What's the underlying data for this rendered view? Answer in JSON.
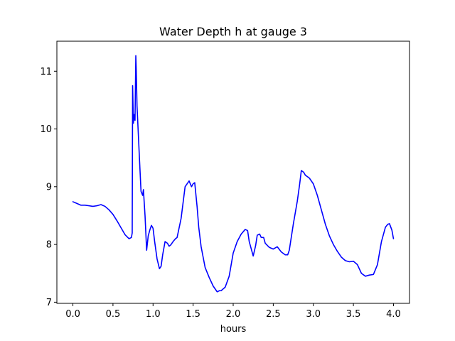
{
  "chart_data": {
    "type": "line",
    "title": "Water Depth h at gauge 3",
    "xlabel": "hours",
    "ylabel": "",
    "xlim": [
      -0.2,
      4.2
    ],
    "ylim": [
      6.98,
      11.52
    ],
    "xticks": [
      0.0,
      0.5,
      1.0,
      1.5,
      2.0,
      2.5,
      3.0,
      3.5,
      4.0
    ],
    "xtick_labels": [
      "0.0",
      "0.5",
      "1.0",
      "1.5",
      "2.0",
      "2.5",
      "3.0",
      "3.5",
      "4.0"
    ],
    "yticks": [
      7,
      8,
      9,
      10,
      11
    ],
    "ytick_labels": [
      "7",
      "8",
      "9",
      "10",
      "11"
    ],
    "grid": false,
    "series": [
      {
        "color": "#0000ff",
        "x": [
          0.0,
          0.05,
          0.1,
          0.15,
          0.2,
          0.25,
          0.3,
          0.35,
          0.4,
          0.45,
          0.5,
          0.55,
          0.6,
          0.65,
          0.7,
          0.73,
          0.74,
          0.745,
          0.755,
          0.765,
          0.775,
          0.785,
          0.79,
          0.8,
          0.815,
          0.83,
          0.85,
          0.87,
          0.88,
          0.89,
          0.9,
          0.92,
          0.94,
          0.96,
          0.98,
          1.0,
          1.02,
          1.05,
          1.08,
          1.1,
          1.12,
          1.15,
          1.18,
          1.2,
          1.22,
          1.25,
          1.28,
          1.3,
          1.35,
          1.4,
          1.45,
          1.48,
          1.5,
          1.52,
          1.55,
          1.57,
          1.6,
          1.65,
          1.7,
          1.75,
          1.8,
          1.83,
          1.85,
          1.9,
          1.95,
          2.0,
          2.05,
          2.1,
          2.15,
          2.18,
          2.2,
          2.25,
          2.28,
          2.3,
          2.33,
          2.35,
          2.38,
          2.4,
          2.45,
          2.5,
          2.55,
          2.6,
          2.65,
          2.68,
          2.7,
          2.75,
          2.8,
          2.83,
          2.85,
          2.88,
          2.9,
          2.95,
          3.0,
          3.05,
          3.1,
          3.15,
          3.2,
          3.25,
          3.3,
          3.35,
          3.4,
          3.45,
          3.5,
          3.55,
          3.6,
          3.65,
          3.7,
          3.75,
          3.8,
          3.85,
          3.9,
          3.93,
          3.95,
          3.98,
          4.0
        ],
        "y": [
          8.74,
          8.71,
          8.68,
          8.68,
          8.67,
          8.66,
          8.67,
          8.69,
          8.66,
          8.6,
          8.52,
          8.41,
          8.29,
          8.17,
          8.1,
          8.12,
          8.2,
          10.75,
          10.1,
          10.25,
          10.15,
          11.27,
          11.05,
          10.4,
          9.95,
          9.5,
          8.92,
          8.85,
          8.95,
          8.72,
          8.5,
          7.9,
          8.15,
          8.25,
          8.33,
          8.28,
          8.05,
          7.75,
          7.58,
          7.62,
          7.82,
          8.05,
          8.02,
          7.97,
          7.99,
          8.05,
          8.1,
          8.12,
          8.45,
          9.0,
          9.1,
          9.0,
          9.05,
          9.07,
          8.65,
          8.3,
          7.96,
          7.6,
          7.43,
          7.28,
          7.18,
          7.2,
          7.2,
          7.26,
          7.45,
          7.85,
          8.05,
          8.18,
          8.26,
          8.24,
          8.05,
          7.8,
          7.98,
          8.16,
          8.18,
          8.12,
          8.12,
          8.02,
          7.95,
          7.92,
          7.96,
          7.87,
          7.82,
          7.82,
          7.9,
          8.35,
          8.75,
          9.05,
          9.28,
          9.25,
          9.2,
          9.15,
          9.05,
          8.85,
          8.6,
          8.35,
          8.15,
          8.0,
          7.88,
          7.78,
          7.72,
          7.7,
          7.71,
          7.65,
          7.5,
          7.45,
          7.47,
          7.48,
          7.65,
          8.05,
          8.3,
          8.35,
          8.36,
          8.25,
          8.1
        ]
      }
    ]
  }
}
